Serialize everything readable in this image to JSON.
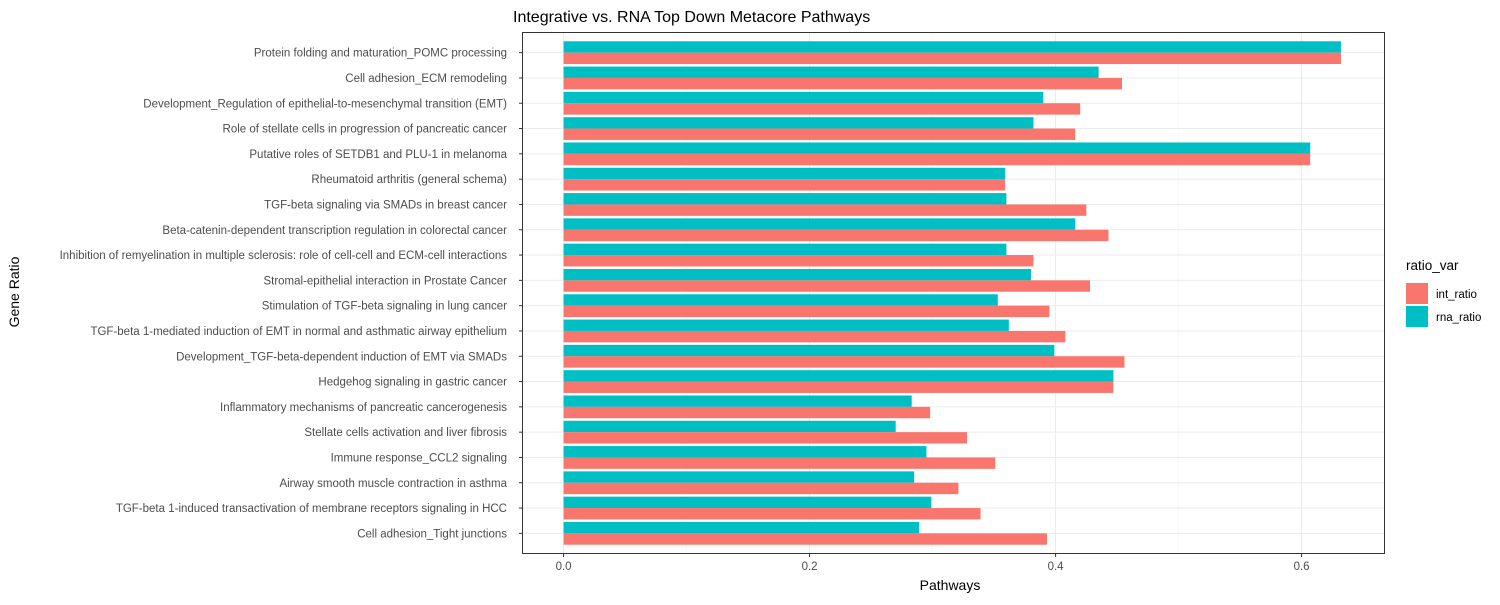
{
  "chart_data": {
    "type": "bar",
    "orientation": "horizontal",
    "title": "Integrative vs. RNA Top Down Metacore Pathways",
    "xlabel": "Pathways",
    "ylabel": "Gene Ratio",
    "xlim": [
      -0.033,
      0.667
    ],
    "xticks": [
      0.0,
      0.2,
      0.4,
      0.6
    ],
    "xtick_labels": [
      "0.0",
      "0.2",
      "0.4",
      "0.6"
    ],
    "grid": true,
    "legend": {
      "title": "ratio_var",
      "position": "right"
    },
    "categories": [
      "Protein folding and maturation_POMC processing",
      "Cell adhesion_ECM remodeling",
      "Development_Regulation of epithelial-to-mesenchymal transition (EMT)",
      "Role of stellate cells in progression of pancreatic cancer",
      "Putative roles of SETDB1 and PLU-1 in melanoma",
      "Rheumatoid arthritis (general schema)",
      "TGF-beta signaling via SMADs in breast cancer",
      "Beta-catenin-dependent transcription regulation in colorectal cancer",
      "Inhibition of remyelination in multiple sclerosis: role of cell-cell and ECM-cell interactions",
      "Stromal-epithelial interaction in Prostate Cancer",
      "Stimulation of TGF-beta signaling in lung cancer",
      "TGF-beta 1-mediated induction of EMT in normal and asthmatic airway epithelium",
      "Development_TGF-beta-dependent induction of EMT via SMADs",
      "Hedgehog signaling in gastric cancer",
      "Inflammatory mechanisms of pancreatic cancerogenesis",
      "Stellate cells activation and liver fibrosis",
      "Immune response_CCL2 signaling",
      "Airway smooth muscle contraction in asthma",
      "TGF-beta 1-induced transactivation of membrane receptors signaling in HCC",
      "Cell adhesion_Tight junctions"
    ],
    "series": [
      {
        "name": "int_ratio",
        "color": "#F8766D",
        "values": [
          0.632,
          0.454,
          0.42,
          0.416,
          0.607,
          0.359,
          0.425,
          0.443,
          0.382,
          0.428,
          0.395,
          0.408,
          0.456,
          0.447,
          0.298,
          0.328,
          0.351,
          0.321,
          0.339,
          0.393
        ]
      },
      {
        "name": "rna_ratio",
        "color": "#00BFC4",
        "values": [
          0.632,
          0.435,
          0.39,
          0.382,
          0.607,
          0.359,
          0.36,
          0.416,
          0.36,
          0.38,
          0.353,
          0.362,
          0.399,
          0.447,
          0.283,
          0.27,
          0.295,
          0.285,
          0.299,
          0.289
        ]
      }
    ]
  }
}
